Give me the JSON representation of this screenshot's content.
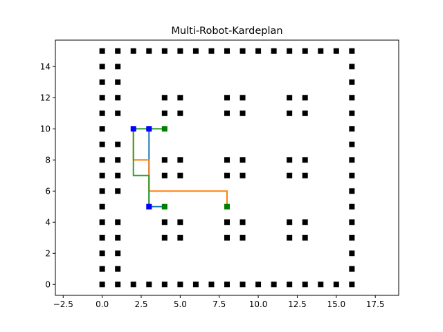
{
  "chart_data": {
    "type": "scatter",
    "title": "Multi-Robot-Kardeplan",
    "xlabel": "",
    "ylabel": "",
    "xlim": [
      -3,
      19
    ],
    "ylim": [
      -0.7,
      15.7
    ],
    "xticks": [
      -2.5,
      0.0,
      2.5,
      5.0,
      7.5,
      10.0,
      12.5,
      15.0,
      17.5
    ],
    "xtick_labels": [
      "−2.5",
      "0.0",
      "2.5",
      "5.0",
      "7.5",
      "10.0",
      "12.5",
      "15.0",
      "17.5"
    ],
    "yticks": [
      0,
      2,
      4,
      6,
      8,
      10,
      12,
      14
    ],
    "ytick_labels": [
      "0",
      "2",
      "4",
      "6",
      "8",
      "10",
      "12",
      "14"
    ],
    "grid": false,
    "obstacles": {
      "color": "#000000",
      "points": [
        [
          0,
          0
        ],
        [
          1,
          0
        ],
        [
          2,
          0
        ],
        [
          3,
          0
        ],
        [
          4,
          0
        ],
        [
          5,
          0
        ],
        [
          6,
          0
        ],
        [
          7,
          0
        ],
        [
          8,
          0
        ],
        [
          9,
          0
        ],
        [
          10,
          0
        ],
        [
          11,
          0
        ],
        [
          12,
          0
        ],
        [
          13,
          0
        ],
        [
          14,
          0
        ],
        [
          15,
          0
        ],
        [
          16,
          0
        ],
        [
          0,
          15
        ],
        [
          1,
          15
        ],
        [
          2,
          15
        ],
        [
          3,
          15
        ],
        [
          4,
          15
        ],
        [
          5,
          15
        ],
        [
          6,
          15
        ],
        [
          7,
          15
        ],
        [
          8,
          15
        ],
        [
          9,
          15
        ],
        [
          10,
          15
        ],
        [
          11,
          15
        ],
        [
          12,
          15
        ],
        [
          13,
          15
        ],
        [
          14,
          15
        ],
        [
          15,
          15
        ],
        [
          16,
          15
        ],
        [
          0,
          1
        ],
        [
          0,
          2
        ],
        [
          0,
          3
        ],
        [
          0,
          4
        ],
        [
          0,
          5
        ],
        [
          0,
          6
        ],
        [
          0,
          7
        ],
        [
          0,
          8
        ],
        [
          0,
          9
        ],
        [
          0,
          10
        ],
        [
          0,
          11
        ],
        [
          0,
          12
        ],
        [
          0,
          13
        ],
        [
          0,
          14
        ],
        [
          16,
          1
        ],
        [
          16,
          2
        ],
        [
          16,
          3
        ],
        [
          16,
          4
        ],
        [
          16,
          5
        ],
        [
          16,
          6
        ],
        [
          16,
          7
        ],
        [
          16,
          8
        ],
        [
          16,
          9
        ],
        [
          16,
          10
        ],
        [
          16,
          11
        ],
        [
          16,
          12
        ],
        [
          16,
          13
        ],
        [
          16,
          14
        ],
        [
          1,
          1
        ],
        [
          1,
          2
        ],
        [
          1,
          3
        ],
        [
          1,
          4
        ],
        [
          1,
          6
        ],
        [
          1,
          7
        ],
        [
          1,
          8
        ],
        [
          1,
          9
        ],
        [
          1,
          11
        ],
        [
          1,
          12
        ],
        [
          1,
          13
        ],
        [
          1,
          14
        ],
        [
          4,
          3
        ],
        [
          5,
          3
        ],
        [
          4,
          4
        ],
        [
          5,
          4
        ],
        [
          8,
          3
        ],
        [
          9,
          3
        ],
        [
          8,
          4
        ],
        [
          9,
          4
        ],
        [
          12,
          3
        ],
        [
          13,
          3
        ],
        [
          12,
          4
        ],
        [
          13,
          4
        ],
        [
          4,
          7
        ],
        [
          5,
          7
        ],
        [
          4,
          8
        ],
        [
          5,
          8
        ],
        [
          8,
          7
        ],
        [
          9,
          7
        ],
        [
          8,
          8
        ],
        [
          9,
          8
        ],
        [
          12,
          7
        ],
        [
          13,
          7
        ],
        [
          12,
          8
        ],
        [
          13,
          8
        ],
        [
          4,
          11
        ],
        [
          5,
          11
        ],
        [
          4,
          12
        ],
        [
          5,
          12
        ],
        [
          8,
          11
        ],
        [
          9,
          11
        ],
        [
          8,
          12
        ],
        [
          9,
          12
        ],
        [
          12,
          11
        ],
        [
          13,
          11
        ],
        [
          12,
          12
        ],
        [
          13,
          12
        ]
      ]
    },
    "starts": {
      "color": "#0000ff",
      "points": [
        [
          2,
          10
        ],
        [
          3,
          10
        ],
        [
          3,
          5
        ]
      ]
    },
    "goals": {
      "color": "#008000",
      "points": [
        [
          4,
          10
        ],
        [
          4,
          5
        ],
        [
          8,
          5
        ]
      ]
    },
    "paths": [
      {
        "color": "#1f77b4",
        "points": [
          [
            3,
            10
          ],
          [
            3,
            5
          ],
          [
            4,
            5
          ]
        ]
      },
      {
        "color": "#ff7f0e",
        "points": [
          [
            2,
            10
          ],
          [
            2,
            8
          ],
          [
            3,
            8
          ],
          [
            3,
            6
          ],
          [
            8,
            6
          ],
          [
            8,
            5
          ]
        ]
      },
      {
        "color": "#2ca02c",
        "points": [
          [
            3,
            5
          ],
          [
            3,
            7
          ],
          [
            2,
            7
          ],
          [
            2,
            10
          ],
          [
            4,
            10
          ]
        ]
      }
    ]
  }
}
